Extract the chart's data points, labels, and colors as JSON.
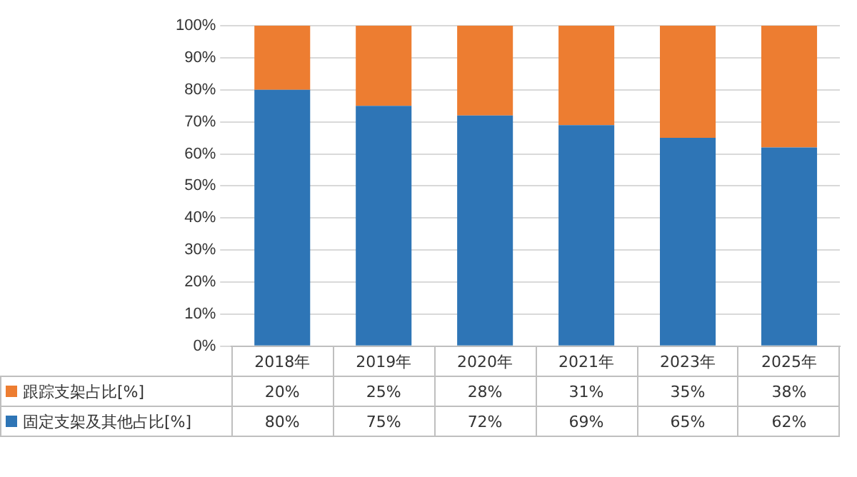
{
  "chart_data": {
    "type": "bar",
    "stacked": true,
    "categories": [
      "2018年",
      "2019年",
      "2020年",
      "2021年",
      "2023年",
      "2025年"
    ],
    "series": [
      {
        "name": "固定支架及其他占比[%]",
        "color": "#2e75b6",
        "values": [
          80,
          75,
          72,
          69,
          65,
          62
        ],
        "value_labels": [
          "80%",
          "75%",
          "72%",
          "69%",
          "65%",
          "62%"
        ]
      },
      {
        "name": "跟踪支架占比[%]",
        "color": "#ed7d31",
        "values": [
          20,
          25,
          28,
          31,
          35,
          38
        ],
        "value_labels": [
          "20%",
          "25%",
          "28%",
          "31%",
          "35%",
          "38%"
        ]
      }
    ],
    "ylim": [
      0,
      100
    ],
    "yticks": [
      {
        "value": 0,
        "label": "0%"
      },
      {
        "value": 10,
        "label": "10%"
      },
      {
        "value": 20,
        "label": "20%"
      },
      {
        "value": 30,
        "label": "30%"
      },
      {
        "value": 40,
        "label": "40%"
      },
      {
        "value": 50,
        "label": "50%"
      },
      {
        "value": 60,
        "label": "60%"
      },
      {
        "value": 70,
        "label": "70%"
      },
      {
        "value": 80,
        "label": "80%"
      },
      {
        "value": 90,
        "label": "90%"
      },
      {
        "value": 100,
        "label": "100%"
      }
    ],
    "grid": "y",
    "legend": "bottom"
  }
}
